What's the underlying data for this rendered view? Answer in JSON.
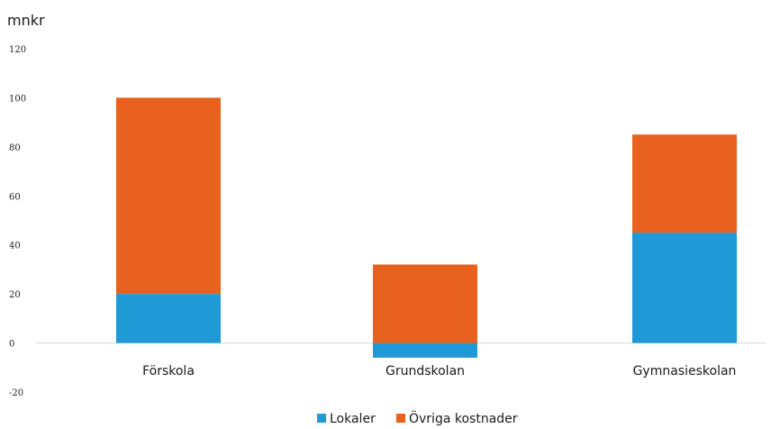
{
  "chart_data": {
    "type": "bar",
    "stacked": true,
    "unit_label": "mnkr",
    "categories": [
      "Förskola",
      "Grundskolan",
      "Gymnasieskolan"
    ],
    "series": [
      {
        "name": "Lokaler",
        "color": "#1f9ad6",
        "values": [
          20,
          -6,
          45
        ]
      },
      {
        "name": "Övriga kostnader",
        "color": "#e8611e",
        "values": [
          80,
          32,
          40
        ]
      }
    ],
    "ylim": [
      -20,
      120
    ],
    "yticks": [
      -20,
      0,
      20,
      40,
      60,
      80,
      100,
      120
    ],
    "ytick_labels": [
      "-20",
      "0",
      "20",
      "40",
      "60",
      "80",
      "100",
      "120"
    ],
    "xlabel": "",
    "ylabel": "",
    "legend_position": "bottom",
    "grid": false
  }
}
